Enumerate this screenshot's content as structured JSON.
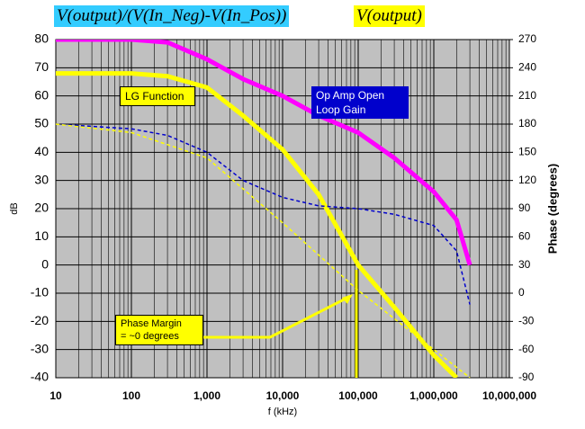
{
  "chart_data": {
    "type": "line",
    "header_labels": [
      {
        "text": "V(output)/(V(In_Neg)-V(In_Pos))",
        "color": "#33ccff"
      },
      {
        "text": "V(output)",
        "color": "#ffff00"
      }
    ],
    "x_label": "f (kHz)",
    "y_label": "dB",
    "y2_label": "Phase (degrees)",
    "log_x": true,
    "grid": true,
    "xlim": [
      10,
      10000000
    ],
    "xticks": [
      10,
      100,
      {
        "value": 1000,
        "label": "1,000"
      },
      {
        "value": 10000,
        "label": "10,000"
      },
      {
        "value": 100000,
        "label": "100,000"
      },
      {
        "value": 1000000,
        "label": "1,000,000"
      },
      {
        "value": 10000000,
        "label": "10,000,000"
      }
    ],
    "ylim": [
      -40,
      80
    ],
    "yticks": [
      -40,
      -30,
      -20,
      -10,
      0,
      10,
      20,
      30,
      40,
      50,
      60,
      70,
      80
    ],
    "y2lim": [
      -90,
      270
    ],
    "y2ticks": [
      -90,
      -60,
      -30,
      0,
      30,
      60,
      90,
      120,
      150,
      180,
      210,
      240,
      270
    ],
    "series": [
      {
        "name": "Op Amp Open Loop Gain",
        "color": "#ff00ff",
        "x": [
          10,
          100,
          300,
          1000,
          3000,
          10000,
          30000,
          100000,
          300000,
          1000000,
          2000000,
          3000000
        ],
        "values": [
          80,
          80,
          79,
          73,
          66,
          60,
          53,
          47,
          38,
          26,
          16,
          0
        ]
      },
      {
        "name": "LG Function",
        "color": "#ffff00",
        "x": [
          10,
          100,
          300,
          1000,
          3000,
          10000,
          30000,
          100000,
          300000,
          1000000,
          2000000
        ],
        "values": [
          68,
          68,
          67,
          63,
          53,
          41,
          25,
          0,
          -15,
          -32,
          -40
        ]
      },
      {
        "color": "#0000cc",
        "dashed": true,
        "axis": "y2",
        "x": [
          10,
          100,
          300,
          1000,
          3000,
          10000,
          30000,
          100000,
          300000,
          1000000,
          2000000,
          3000000
        ],
        "values": [
          180,
          175,
          168,
          150,
          120,
          102,
          93,
          90,
          84,
          72,
          45,
          -12
        ]
      },
      {
        "color": "#ffff00",
        "dashed": true,
        "axis": "y2",
        "x": [
          10,
          100,
          1000,
          10000,
          100000,
          1000000,
          3000000
        ],
        "values": [
          180,
          171,
          144,
          75,
          3,
          -60,
          -90
        ]
      }
    ],
    "annotation": {
      "lines": [
        "Phase Margin",
        "= ~0 degrees"
      ]
    }
  }
}
